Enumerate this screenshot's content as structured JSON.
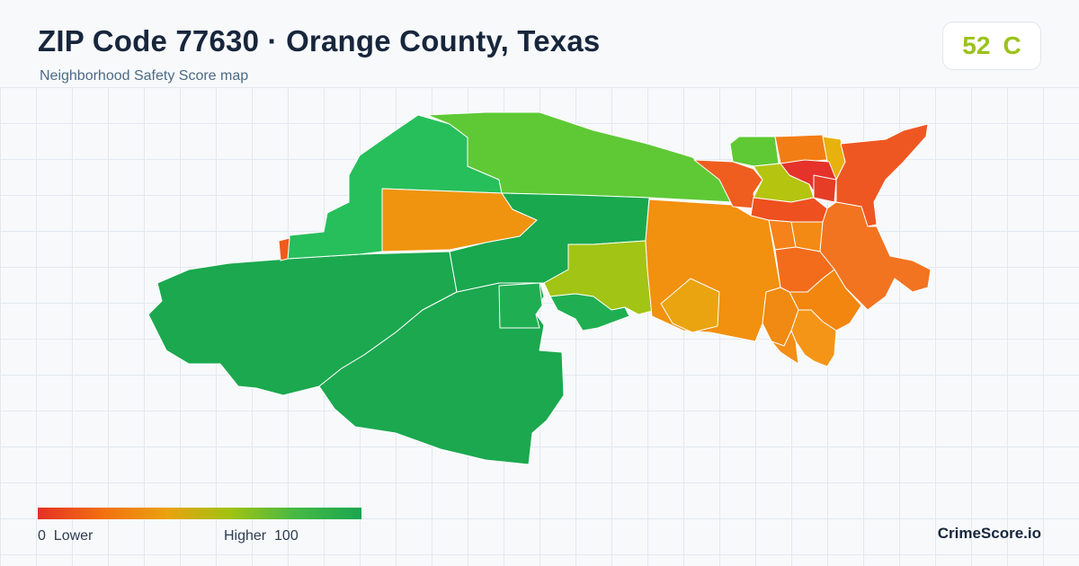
{
  "header": {
    "title": "ZIP Code 77630 · Orange County, Texas",
    "subtitle": "Neighborhood Safety Score map"
  },
  "score": {
    "value": "52",
    "grade": "C",
    "color": "#9bc21a"
  },
  "legend": {
    "low_value": "0",
    "low_label": "Lower",
    "high_label": "Higher",
    "high_value": "100",
    "colors": [
      "#e53026",
      "#f2700f",
      "#eaa20e",
      "#9ec313",
      "#46b845",
      "#1aa64f"
    ]
  },
  "brand": "CrimeScore.io",
  "map": {
    "regions": [
      {
        "id": "west-large",
        "color": "#1ba84f"
      },
      {
        "id": "south-central",
        "color": "#1ba84f"
      },
      {
        "id": "north-west",
        "color": "#27bf5b"
      },
      {
        "id": "north-central",
        "color": "#5ec935"
      },
      {
        "id": "center-orange",
        "color": "#f0940f"
      },
      {
        "id": "center-green",
        "color": "#19a84e"
      },
      {
        "id": "center-yellow",
        "color": "#a2c414"
      },
      {
        "id": "small-green-a",
        "color": "#1faf52"
      },
      {
        "id": "small-green-b",
        "color": "#1faf52"
      },
      {
        "id": "small-orange-west",
        "color": "#f05a1c"
      },
      {
        "id": "east-orange-large",
        "color": "#f2900f"
      },
      {
        "id": "east-amber-small",
        "color": "#eaa410"
      },
      {
        "id": "east-red-orange-north",
        "color": "#ef5e1f"
      },
      {
        "id": "east-green-top",
        "color": "#5ec935"
      },
      {
        "id": "east-orange-top",
        "color": "#f37d15"
      },
      {
        "id": "east-yellow-top",
        "color": "#e8b10d"
      },
      {
        "id": "east-yellow-green",
        "color": "#b5c40f"
      },
      {
        "id": "east-red-core",
        "color": "#e5322a"
      },
      {
        "id": "east-red-core-2",
        "color": "#e63d26"
      },
      {
        "id": "east-red-band",
        "color": "#ee501f"
      },
      {
        "id": "east-far-red",
        "color": "#ef5722"
      },
      {
        "id": "east-orange-mid",
        "color": "#f5821a"
      },
      {
        "id": "east-orange-mid-2",
        "color": "#f28a14"
      },
      {
        "id": "east-se-orange",
        "color": "#f36c1c"
      },
      {
        "id": "east-south-orange",
        "color": "#f2860f"
      },
      {
        "id": "east-south-orange-2",
        "color": "#f08a12"
      },
      {
        "id": "east-cell-a",
        "color": "#f49518"
      },
      {
        "id": "east-cell-b",
        "color": "#f28e15"
      },
      {
        "id": "east-orange-east",
        "color": "#f27420"
      }
    ]
  }
}
